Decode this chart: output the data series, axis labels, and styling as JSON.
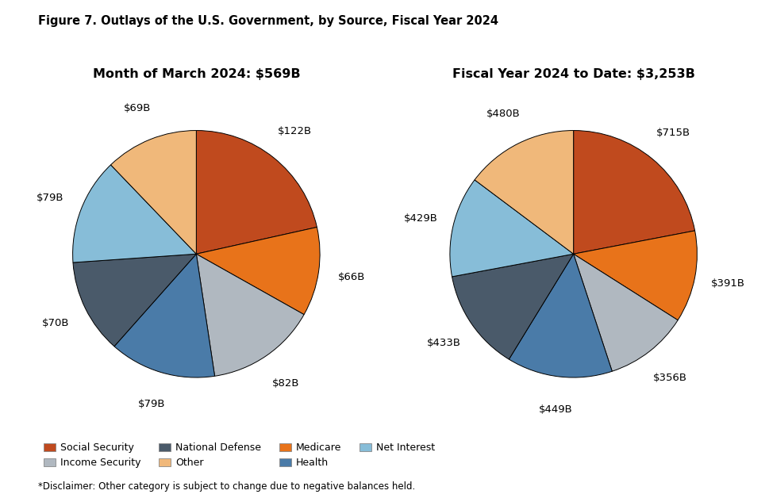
{
  "title": "Figure 7. Outlays of the U.S. Government, by Source, Fiscal Year 2024",
  "disclaimer": "*Disclaimer: Other category is subject to change due to negative balances held.",
  "pie1_title": "Month of March 2024: $569B",
  "pie2_title": "Fiscal Year 2024 to Date: $3,253B",
  "categories": [
    "Social Security",
    "Medicare",
    "Income Security",
    "Health",
    "National Defense",
    "Net Interest",
    "Other"
  ],
  "pie1_values": [
    122,
    66,
    82,
    79,
    70,
    79,
    69
  ],
  "pie2_values": [
    715,
    391,
    356,
    449,
    433,
    429,
    480
  ],
  "colors": {
    "Social Security": "#C04A1E",
    "Medicare": "#E8731A",
    "Income Security": "#B0B8C0",
    "Health": "#4A7BA8",
    "National Defense": "#4A5A6A",
    "Net Interest": "#87BDD8",
    "Other": "#F0B87A"
  },
  "pie1_labels": [
    "$122B",
    "$66B",
    "$82B",
    "$79B",
    "$70B",
    "$79B",
    "$69B"
  ],
  "pie2_labels": [
    "$715B",
    "$391B",
    "$356B",
    "$449B",
    "$433B",
    "$429B",
    "$480B"
  ],
  "legend_row1": [
    "Social Security",
    "Income Security",
    "National Defense",
    "Other"
  ],
  "legend_row2": [
    "Medicare",
    "Health",
    "Net Interest"
  ]
}
